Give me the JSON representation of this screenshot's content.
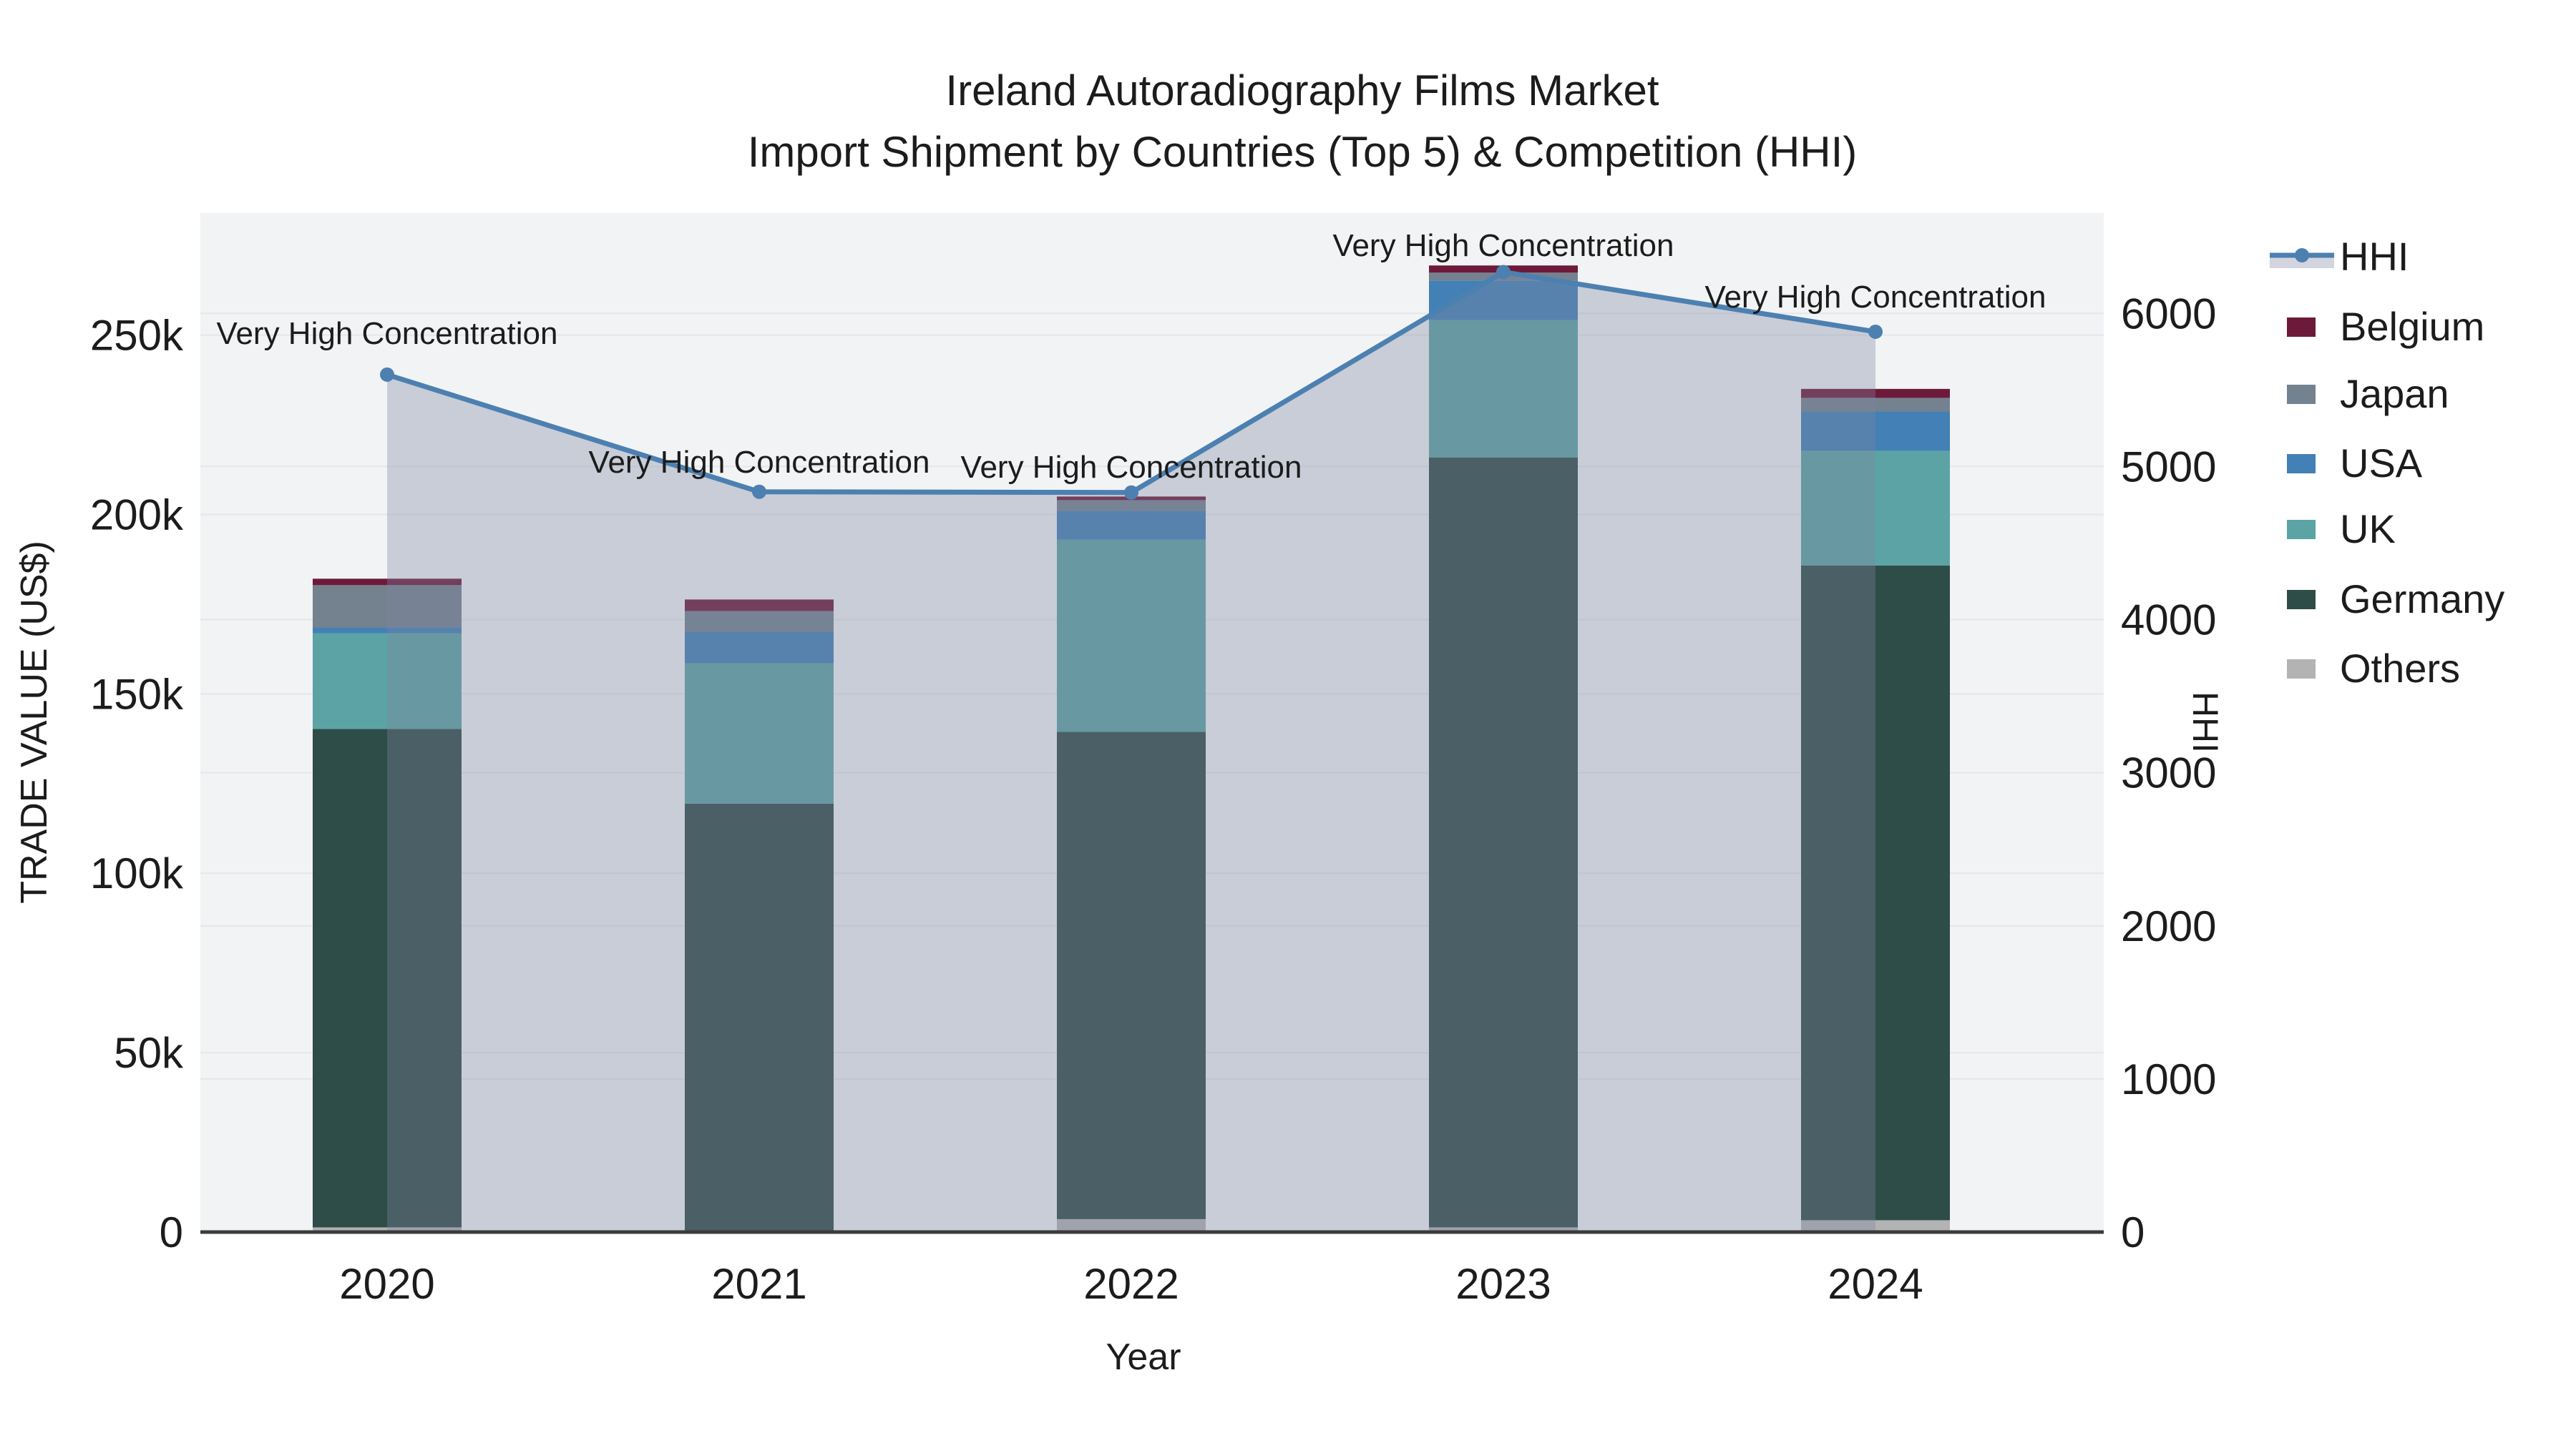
{
  "title": {
    "line1": "Ireland Autoradiography Films Market",
    "line2": "Import Shipment by Countries (Top 5) & Competition (HHI)"
  },
  "axis_titles": {
    "left": "TRADE VALUE (US$)",
    "right": "HHI",
    "x": "Year"
  },
  "annotation_text": "Very High Concentration",
  "chart_data": {
    "type": "bar",
    "subtype": "stacked-bars-with-line-overlay",
    "categories": [
      "2020",
      "2021",
      "2022",
      "2023",
      "2024"
    ],
    "series": [
      {
        "name": "Others",
        "color": "#b3b3b3",
        "values": [
          1300,
          0,
          3600,
          1300,
          3300
        ]
      },
      {
        "name": "Germany",
        "color": "#2e4c48",
        "values": [
          138900,
          119400,
          135800,
          214600,
          182500
        ]
      },
      {
        "name": "UK",
        "color": "#5ca3a5",
        "values": [
          26700,
          39100,
          53600,
          38300,
          31900
        ]
      },
      {
        "name": "USA",
        "color": "#4380b5",
        "values": [
          1600,
          8800,
          8000,
          11000,
          11000
        ]
      },
      {
        "name": "Japan",
        "color": "#74828f",
        "values": [
          11800,
          5800,
          3000,
          2200,
          3800
        ]
      },
      {
        "name": "Belgium",
        "color": "#6d1a3a",
        "values": [
          1800,
          3200,
          1000,
          2000,
          2500
        ]
      }
    ],
    "line_series": {
      "name": "HHI",
      "color": "#4c80b1",
      "fill_color": "rgba(125,135,160,0.35)",
      "values": [
        5600,
        4835,
        4830,
        6270,
        5880
      ],
      "annotations": [
        "Very High Concentration",
        "Very High Concentration",
        "Very High Concentration",
        "Very High Concentration",
        "Very High Concentration"
      ]
    },
    "title": "Ireland Autoradiography Films Market — Import Shipment by Countries (Top 5) & Competition (HHI)",
    "xlabel": "Year",
    "ylabel_left": "TRADE VALUE (US$)",
    "ylabel_right": "HHI",
    "y_left": {
      "range": [
        0,
        284000
      ],
      "ticks": [
        0,
        50000,
        100000,
        150000,
        200000,
        250000
      ],
      "tick_labels": [
        "0",
        "50k",
        "100k",
        "150k",
        "200k",
        "250k"
      ]
    },
    "y_right": {
      "range": [
        0,
        6655
      ],
      "ticks": [
        0,
        1000,
        2000,
        3000,
        4000,
        5000,
        6000
      ],
      "tick_labels": [
        "0",
        "1000",
        "2000",
        "3000",
        "4000",
        "5000",
        "6000"
      ]
    },
    "grid": true,
    "legend_position": "right",
    "legend_order": [
      "HHI",
      "Belgium",
      "Japan",
      "USA",
      "UK",
      "Germany",
      "Others"
    ]
  },
  "colors": {
    "plot_bg": "#f2f3f4",
    "grid": "#e4e6ea",
    "axis_line": "#3b3b3b",
    "text": "#1c1c1c"
  }
}
